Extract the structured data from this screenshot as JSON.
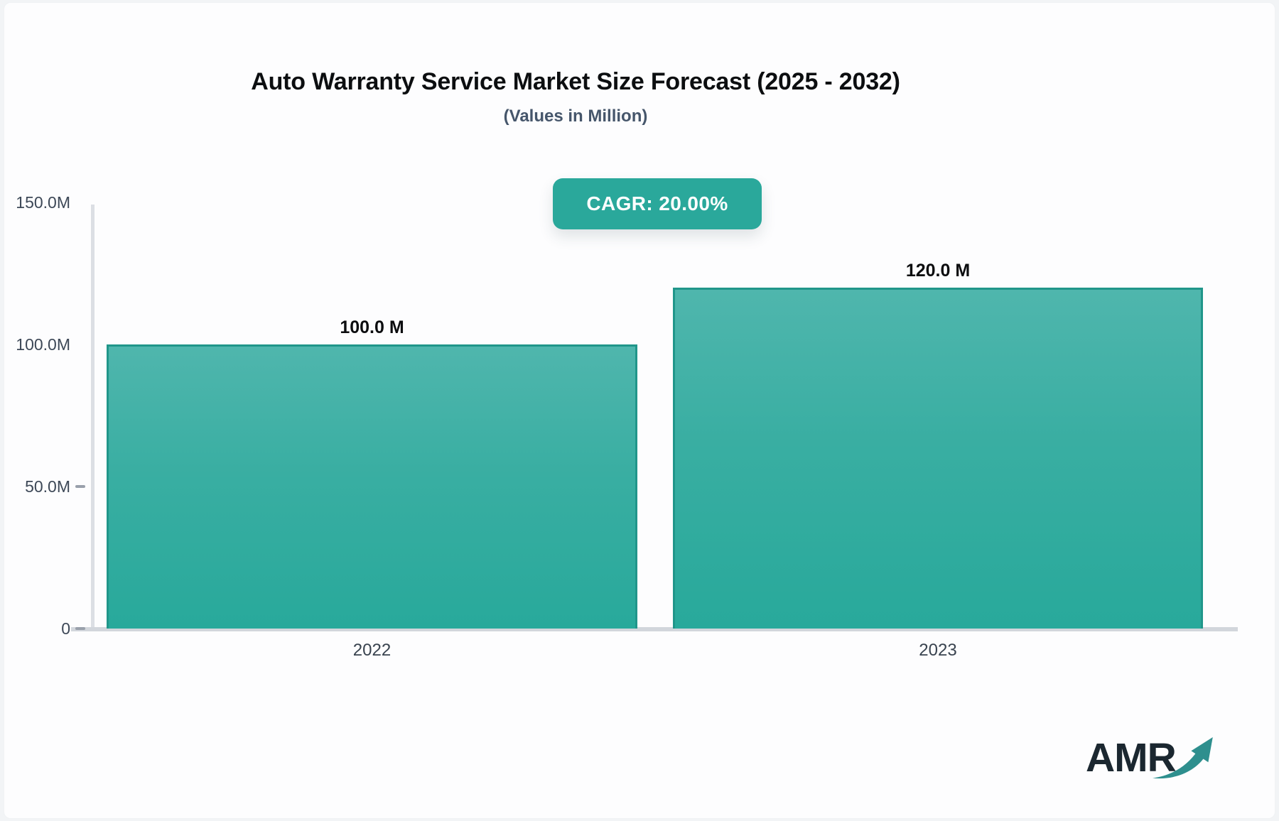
{
  "header": {
    "title": "Auto Warranty Service Market Size Forecast (2025 - 2032)",
    "subtitle": "(Values in Million)",
    "cagr_label": "CAGR: 20.00%"
  },
  "colors": {
    "accent_teal": "#2aa89b",
    "bar_gradient_top": "#4fb6ad",
    "bar_gradient_bottom": "#28a99b",
    "bar_border": "#20968a",
    "axis_line": "#d2d6dc",
    "label_slate": "#3d4857",
    "title_black": "#0c0e10",
    "logo_dark": "#1b2730",
    "logo_arrow_teal": "#2e8f8e"
  },
  "chart_data": {
    "type": "bar",
    "title": "Auto Warranty Service Market Size Forecast (2025 - 2032)",
    "subtitle": "(Values in Million)",
    "annotation": "CAGR: 20.00%",
    "categories": [
      "2022",
      "2023"
    ],
    "values": [
      100.0,
      120.0
    ],
    "value_labels": [
      "100.0 M",
      "120.0 M"
    ],
    "unit": "Million",
    "xlabel": "",
    "ylabel": "",
    "ylim": [
      0,
      150
    ],
    "yticks": [
      150,
      100,
      50,
      0
    ],
    "ytick_labels": [
      "150.0M",
      "100.0M",
      "50.0M",
      "0"
    ],
    "grid": false,
    "legend": false
  },
  "logo": {
    "text": "AMR",
    "arrow_icon": "trend-up-arrow"
  }
}
